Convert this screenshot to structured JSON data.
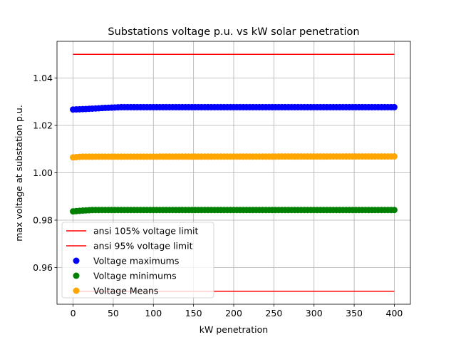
{
  "chart_data": {
    "type": "scatter",
    "title": "Substations voltage p.u. vs kW solar penetration",
    "xlabel": "kW penetration",
    "ylabel": "max voltage at substation p.u.",
    "xlim": [
      -20,
      420
    ],
    "ylim": [
      0.9445,
      1.0555
    ],
    "x_ticks": [
      0,
      50,
      100,
      150,
      200,
      250,
      300,
      350,
      400
    ],
    "y_ticks": [
      0.96,
      0.98,
      1.0,
      1.02,
      1.04
    ],
    "y_tick_labels": [
      "0.96",
      "0.98",
      "1.00",
      "1.02",
      "1.04"
    ],
    "grid": true,
    "legend_position": "lower-left",
    "lines": [
      {
        "name": "ansi 105% voltage limit",
        "color": "#ff0000",
        "x": [
          0,
          400
        ],
        "y": [
          1.05,
          1.05
        ]
      },
      {
        "name": "ansi 95% voltage limit",
        "color": "#ff0000",
        "x": [
          0,
          400
        ],
        "y": [
          0.95,
          0.95
        ]
      }
    ],
    "scatter_x": {
      "start": 0,
      "end": 400,
      "step": 4
    },
    "series": [
      {
        "name": "Voltage maximums",
        "color": "#0000ff",
        "profile": [
          [
            0,
            1.0267
          ],
          [
            20,
            1.027
          ],
          [
            40,
            1.0274
          ],
          [
            60,
            1.0277
          ],
          [
            400,
            1.0277
          ]
        ]
      },
      {
        "name": "Voltage minimums",
        "color": "#008000",
        "profile": [
          [
            0,
            0.9837
          ],
          [
            10,
            0.984
          ],
          [
            25,
            0.9843
          ],
          [
            400,
            0.9843
          ]
        ]
      },
      {
        "name": "Voltage Means",
        "color": "#ffa500",
        "profile": [
          [
            0,
            1.0065
          ],
          [
            10,
            1.0068
          ],
          [
            400,
            1.0069
          ]
        ]
      }
    ]
  }
}
